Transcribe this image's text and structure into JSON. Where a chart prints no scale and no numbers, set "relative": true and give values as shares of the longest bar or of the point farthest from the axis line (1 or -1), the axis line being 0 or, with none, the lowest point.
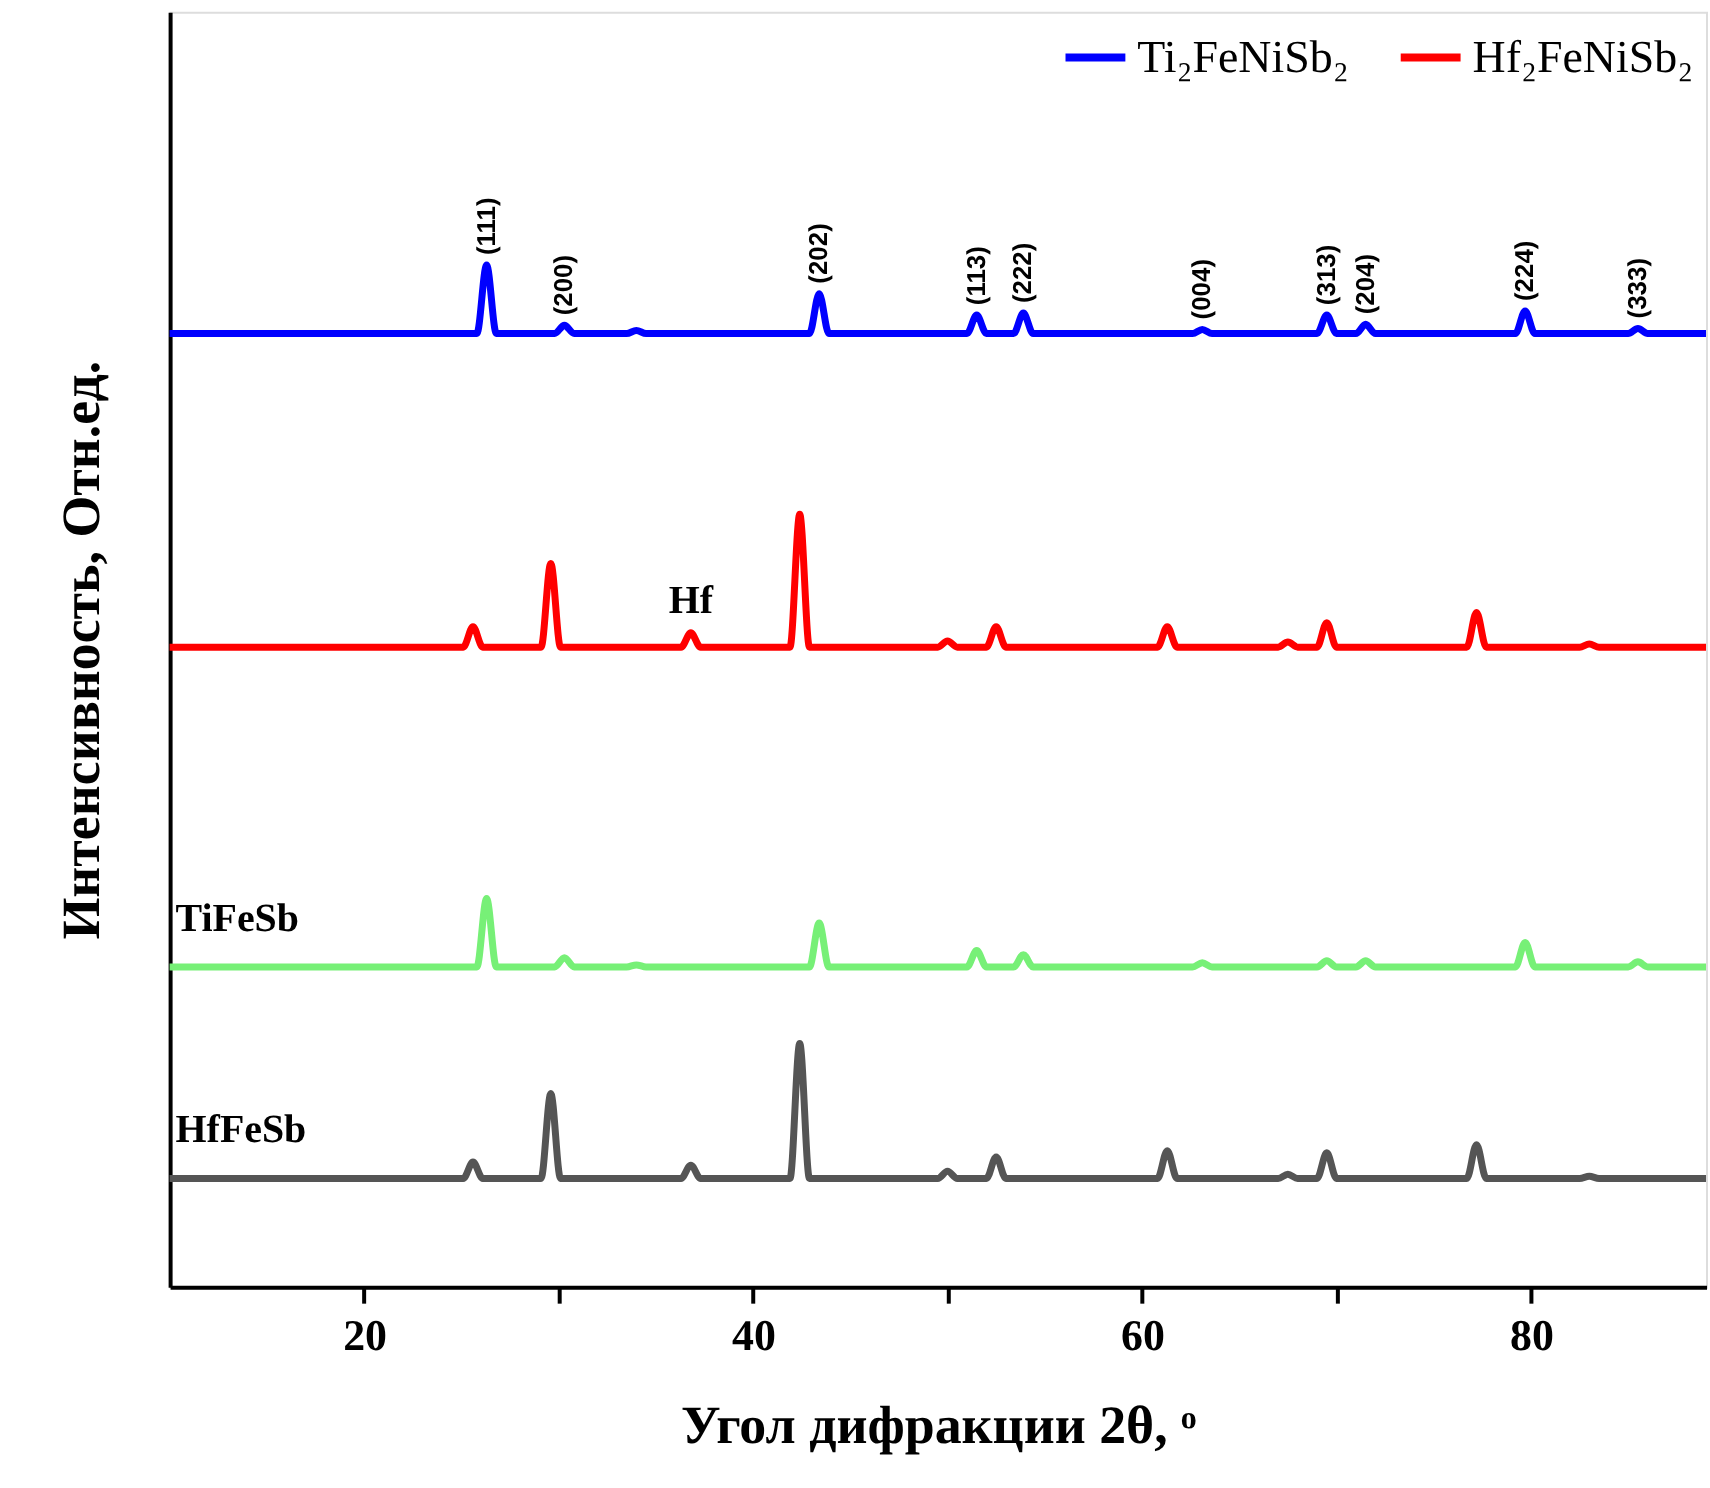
{
  "chart_data": {
    "type": "line",
    "relative": true,
    "xlabel": "Угол дифракции 2θ, ᵒ",
    "ylabel": "Интенсивность, Отн.ед.",
    "xlim": [
      10,
      89
    ],
    "xticks": [
      20,
      {
        "value": 30,
        "label": null
      },
      40,
      {
        "value": 50,
        "label": null
      },
      60,
      {
        "value": 70,
        "label": null
      },
      80
    ],
    "grid": false,
    "legend": "top right",
    "tick_labels": "x",
    "line_style": "solid",
    "marker": "none",
    "series": [
      {
        "name": "Ti₂FeNiSb₂",
        "color": "#0000ff",
        "x": [
          10,
          25.8,
          26.3,
          26.8,
          29.8,
          30.3,
          30.8,
          33.5,
          34.0,
          34.5,
          42.9,
          43.4,
          43.9,
          51.0,
          51.5,
          52.0,
          53.4,
          53.9,
          54.4,
          62.6,
          63.1,
          63.6,
          69.0,
          69.5,
          70.0,
          71.0,
          71.5,
          72.0,
          79.2,
          79.7,
          80.2,
          85.0,
          85.5,
          86.0,
          89
        ],
        "values": [
          0.933,
          0.933,
          1.0,
          0.933,
          0.933,
          0.941,
          0.933,
          0.933,
          0.936,
          0.933,
          0.933,
          0.972,
          0.933,
          0.933,
          0.951,
          0.933,
          0.933,
          0.953,
          0.933,
          0.933,
          0.937,
          0.933,
          0.933,
          0.951,
          0.933,
          0.933,
          0.942,
          0.933,
          0.933,
          0.955,
          0.933,
          0.933,
          0.938,
          0.933,
          0.933
        ]
      },
      {
        "name": "Hf₂FeNiSb₂",
        "color": "#ff0000",
        "x": [
          10,
          25.1,
          25.6,
          26.1,
          29.1,
          29.6,
          30.1,
          36.3,
          36.8,
          37.3,
          41.9,
          42.4,
          42.9,
          49.5,
          50.0,
          50.5,
          52.0,
          52.5,
          53.0,
          60.8,
          61.3,
          61.8,
          67.0,
          67.5,
          68.0,
          69.0,
          69.5,
          70.0,
          76.7,
          77.2,
          77.7,
          82.5,
          83.0,
          83.5,
          89
        ],
        "values": [
          0.626,
          0.626,
          0.646,
          0.626,
          0.626,
          0.708,
          0.626,
          0.626,
          0.64,
          0.626,
          0.626,
          0.756,
          0.626,
          0.626,
          0.632,
          0.626,
          0.626,
          0.646,
          0.626,
          0.626,
          0.646,
          0.626,
          0.626,
          0.631,
          0.626,
          0.626,
          0.65,
          0.626,
          0.626,
          0.66,
          0.626,
          0.626,
          0.629,
          0.626,
          0.626
        ]
      },
      {
        "color": "#77f077",
        "x": [
          10,
          25.8,
          26.3,
          26.8,
          29.8,
          30.3,
          30.8,
          33.5,
          34.0,
          34.5,
          42.9,
          43.4,
          43.9,
          51.0,
          51.5,
          52.0,
          53.4,
          53.9,
          54.4,
          62.6,
          63.1,
          63.6,
          69.0,
          69.5,
          70.0,
          71.0,
          71.5,
          72.0,
          79.2,
          79.7,
          80.2,
          85.0,
          85.5,
          86.0,
          89
        ],
        "values": [
          0.313,
          0.313,
          0.38,
          0.313,
          0.313,
          0.322,
          0.313,
          0.313,
          0.315,
          0.313,
          0.313,
          0.356,
          0.313,
          0.313,
          0.329,
          0.313,
          0.313,
          0.325,
          0.313,
          0.313,
          0.317,
          0.313,
          0.313,
          0.319,
          0.313,
          0.313,
          0.319,
          0.313,
          0.313,
          0.337,
          0.313,
          0.313,
          0.318,
          0.313,
          0.313
        ]
      },
      {
        "color": "#555555",
        "x": [
          10,
          25.1,
          25.6,
          26.1,
          29.1,
          29.6,
          30.1,
          36.3,
          36.8,
          37.3,
          41.9,
          42.4,
          42.9,
          49.5,
          50.0,
          50.5,
          52.0,
          52.5,
          53.0,
          60.8,
          61.3,
          61.8,
          67.0,
          67.5,
          68.0,
          69.0,
          69.5,
          70.0,
          76.7,
          77.2,
          77.7,
          82.5,
          83.0,
          83.5,
          89
        ],
        "values": [
          0.106,
          0.106,
          0.122,
          0.106,
          0.106,
          0.189,
          0.106,
          0.106,
          0.119,
          0.106,
          0.106,
          0.238,
          0.106,
          0.106,
          0.113,
          0.106,
          0.106,
          0.127,
          0.106,
          0.106,
          0.133,
          0.106,
          0.106,
          0.11,
          0.106,
          0.106,
          0.131,
          0.106,
          0.106,
          0.139,
          0.106,
          0.106,
          0.108,
          0.106,
          0.106
        ]
      }
    ],
    "annotations": [
      {
        "text": "(111)",
        "x": 26.3,
        "y": 1.0
      },
      {
        "text": "(200)",
        "x": 30.3,
        "y": 0.941
      },
      {
        "text": "(202)",
        "x": 43.4,
        "y": 0.972
      },
      {
        "text": "(113)",
        "x": 51.5,
        "y": 0.951
      },
      {
        "text": "(222)",
        "x": 53.9,
        "y": 0.953
      },
      {
        "text": "(004)",
        "x": 63.1,
        "y": 0.937
      },
      {
        "text": "(313)",
        "x": 69.5,
        "y": 0.951
      },
      {
        "text": "(204)",
        "x": 71.5,
        "y": 0.942
      },
      {
        "text": "(224)",
        "x": 79.7,
        "y": 0.955
      },
      {
        "text": "(333)",
        "x": 85.5,
        "y": 0.938
      },
      {
        "text": "Hf",
        "x": 36.8,
        "y": 0.64
      },
      {
        "text": "TiFeSb",
        "x": 10,
        "y": 0.313
      },
      {
        "text": "HfFeSb",
        "x": 10,
        "y": 0.106
      }
    ]
  }
}
